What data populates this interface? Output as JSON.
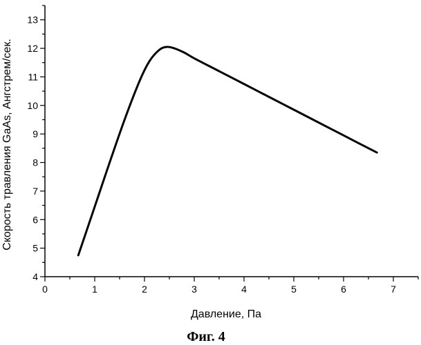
{
  "chart_data": {
    "type": "line",
    "title": "",
    "caption": "Фиг. 4",
    "xlabel": "Давление, Па",
    "ylabel": "Скорость травления GaAs, Ангстрем/сек.",
    "xlim": [
      0,
      7.5
    ],
    "ylim": [
      4,
      13.5
    ],
    "xticks": [
      0,
      1,
      2,
      3,
      4,
      5,
      6,
      7
    ],
    "yticks": [
      4,
      5,
      6,
      7,
      8,
      9,
      10,
      11,
      12,
      13
    ],
    "grid": false,
    "legend": "none",
    "line_color": "#000000",
    "series": [
      {
        "x": [
          0.67,
          1.0,
          1.3,
          1.6,
          1.9,
          2.1,
          2.3,
          2.45,
          2.6,
          2.8,
          3.0,
          3.5,
          4.0,
          4.5,
          5.0,
          5.5,
          6.0,
          6.5,
          6.67
        ],
        "values": [
          4.75,
          6.45,
          8.0,
          9.5,
          10.85,
          11.55,
          11.95,
          12.05,
          12.0,
          11.85,
          11.65,
          11.2,
          10.75,
          10.3,
          9.85,
          9.4,
          8.95,
          8.5,
          8.35
        ]
      }
    ]
  }
}
